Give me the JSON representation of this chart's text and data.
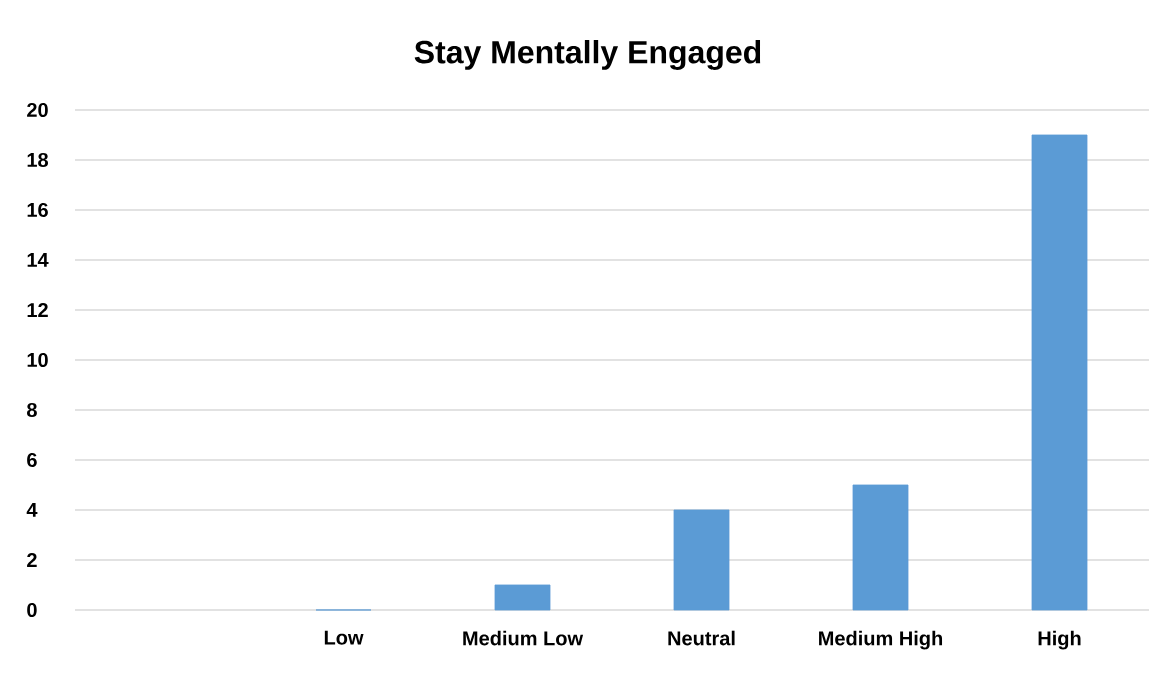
{
  "chart_data": {
    "type": "bar",
    "title": "Stay Mentally Engaged",
    "categories": [
      null,
      "Low",
      "Medium Low",
      "Neutral",
      "Medium  High",
      "High"
    ],
    "values": [
      null,
      0,
      1,
      4,
      5,
      19
    ],
    "color": "#5b9bd5",
    "ylim": [
      0,
      20
    ],
    "yticks": [
      0,
      2,
      4,
      6,
      8,
      10,
      12,
      14,
      16,
      18,
      20
    ],
    "grid": "y"
  }
}
